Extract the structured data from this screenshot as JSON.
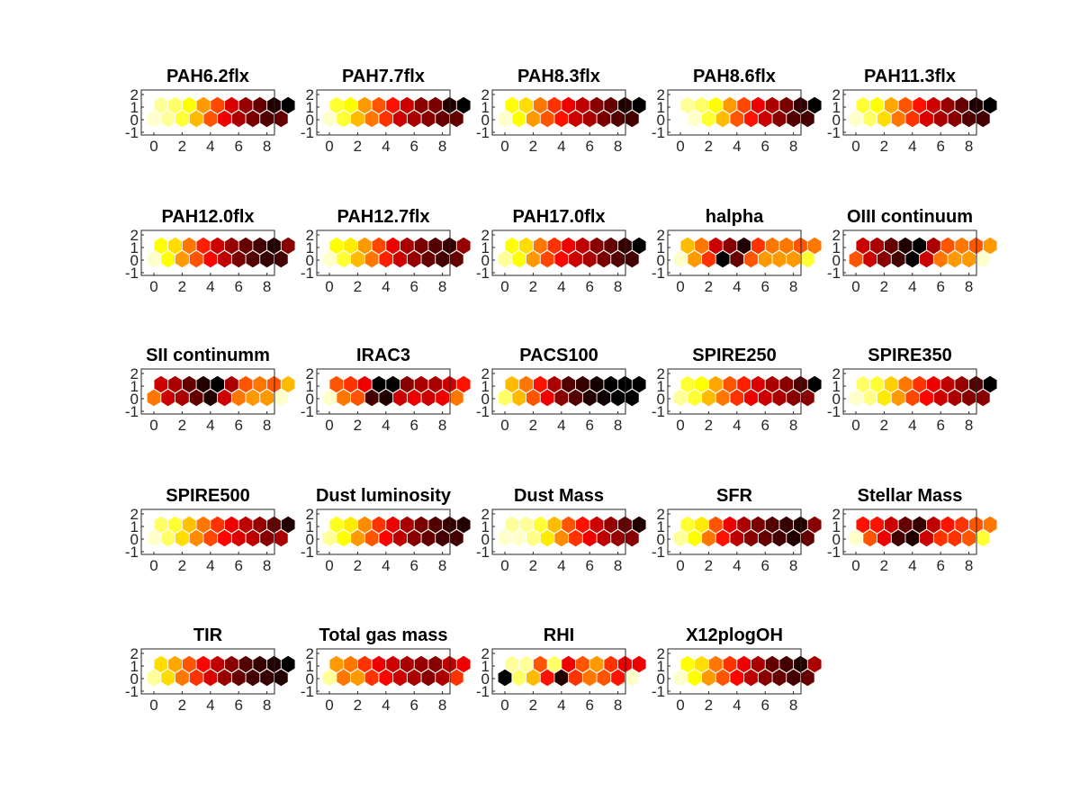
{
  "chart_data": {
    "type": "heatmap",
    "layout": "hexagonal SOM component planes, 10 x 2 grid",
    "colormap": "hot",
    "grid_lines": false,
    "x_ticks": [
      "0",
      "2",
      "4",
      "6",
      "8"
    ],
    "y_ticks": [
      "2",
      "1",
      "0",
      "-1"
    ],
    "xlim": [
      -0.5,
      9.5
    ],
    "ylim": [
      -1,
      2.5
    ],
    "panels": [
      {
        "title": "PAH6.2flx",
        "row0": [
          0.95,
          0.9,
          0.8,
          0.65,
          0.5,
          0.35,
          0.25,
          0.18,
          0.12,
          0.15
        ],
        "row1": [
          0.9,
          0.85,
          0.75,
          0.6,
          0.48,
          0.32,
          0.22,
          0.15,
          0.05,
          0.0
        ]
      },
      {
        "title": "PAH7.7flx",
        "row0": [
          0.95,
          0.8,
          0.65,
          0.55,
          0.45,
          0.3,
          0.25,
          0.2,
          0.15,
          0.15
        ],
        "row1": [
          0.8,
          0.75,
          0.6,
          0.5,
          0.4,
          0.3,
          0.2,
          0.18,
          0.05,
          0.0
        ]
      },
      {
        "title": "PAH8.3flx",
        "row0": [
          0.95,
          0.75,
          0.6,
          0.5,
          0.4,
          0.3,
          0.25,
          0.18,
          0.12,
          0.1
        ],
        "row1": [
          0.75,
          0.7,
          0.55,
          0.45,
          0.35,
          0.28,
          0.2,
          0.15,
          0.05,
          0.0
        ]
      },
      {
        "title": "PAH8.6flx",
        "row0": [
          1.0,
          0.95,
          0.8,
          0.65,
          0.5,
          0.4,
          0.3,
          0.2,
          0.12,
          0.1
        ],
        "row1": [
          0.9,
          0.85,
          0.75,
          0.6,
          0.48,
          0.35,
          0.25,
          0.18,
          0.08,
          0.0
        ]
      },
      {
        "title": "PAH11.3flx",
        "row0": [
          0.95,
          0.85,
          0.7,
          0.55,
          0.45,
          0.32,
          0.25,
          0.2,
          0.12,
          0.1
        ],
        "row1": [
          0.8,
          0.75,
          0.62,
          0.5,
          0.4,
          0.3,
          0.22,
          0.15,
          0.05,
          0.0
        ]
      },
      {
        "title": "PAH12.0flx",
        "row0": [
          0.95,
          0.75,
          0.6,
          0.5,
          0.38,
          0.28,
          0.18,
          0.12,
          0.08,
          0.1
        ],
        "row1": [
          0.75,
          0.7,
          0.55,
          0.42,
          0.3,
          0.22,
          0.15,
          0.1,
          0.05,
          0.2
        ]
      },
      {
        "title": "PAH12.7flx",
        "row0": [
          0.95,
          0.8,
          0.65,
          0.55,
          0.42,
          0.3,
          0.22,
          0.15,
          0.1,
          0.15
        ],
        "row1": [
          0.75,
          0.72,
          0.6,
          0.48,
          0.35,
          0.25,
          0.18,
          0.12,
          0.08,
          0.22
        ]
      },
      {
        "title": "PAH17.0flx",
        "row0": [
          0.9,
          0.75,
          0.6,
          0.48,
          0.38,
          0.3,
          0.25,
          0.18,
          0.12,
          0.1
        ],
        "row1": [
          0.75,
          0.7,
          0.55,
          0.45,
          0.35,
          0.28,
          0.2,
          0.15,
          0.08,
          0.0
        ]
      },
      {
        "title": "halpha",
        "row0": [
          0.95,
          0.6,
          0.45,
          0.0,
          0.15,
          0.5,
          0.6,
          0.6,
          0.6,
          0.8
        ],
        "row1": [
          0.65,
          0.55,
          0.3,
          0.2,
          0.05,
          0.45,
          0.55,
          0.55,
          0.5,
          0.55
        ]
      },
      {
        "title": "OIII continuum",
        "row0": [
          0.5,
          0.3,
          0.2,
          0.1,
          0.0,
          0.3,
          0.55,
          0.6,
          0.6,
          0.95
        ],
        "row1": [
          0.3,
          0.25,
          0.15,
          0.05,
          0.0,
          0.25,
          0.5,
          0.55,
          0.5,
          0.6
        ]
      },
      {
        "title": "SII continumm",
        "row0": [
          0.55,
          0.3,
          0.25,
          0.15,
          0.05,
          0.3,
          0.55,
          0.6,
          0.6,
          0.95
        ],
        "row1": [
          0.3,
          0.25,
          0.15,
          0.05,
          0.0,
          0.25,
          0.5,
          0.55,
          0.5,
          0.65
        ]
      },
      {
        "title": "IRAC3",
        "row0": [
          0.95,
          0.55,
          0.5,
          0.1,
          0.05,
          0.3,
          0.35,
          0.3,
          0.35,
          0.55
        ],
        "row1": [
          0.5,
          0.45,
          0.35,
          0.0,
          0.0,
          0.2,
          0.25,
          0.25,
          0.3,
          0.4
        ]
      },
      {
        "title": "PACS100",
        "row0": [
          0.85,
          0.65,
          0.5,
          0.35,
          0.2,
          0.12,
          0.05,
          0.02,
          0.0,
          0.0
        ],
        "row1": [
          0.65,
          0.55,
          0.4,
          0.25,
          0.12,
          0.08,
          0.03,
          0.0,
          0.0,
          0.0
        ]
      },
      {
        "title": "SPIRE250",
        "row0": [
          0.9,
          0.8,
          0.65,
          0.55,
          0.45,
          0.35,
          0.3,
          0.25,
          0.2,
          0.2
        ],
        "row1": [
          0.8,
          0.75,
          0.62,
          0.5,
          0.42,
          0.32,
          0.25,
          0.2,
          0.12,
          0.0
        ]
      },
      {
        "title": "SPIRE350",
        "row0": [
          0.95,
          0.88,
          0.72,
          0.6,
          0.48,
          0.38,
          0.3,
          0.25,
          0.2,
          0.2
        ],
        "row1": [
          0.85,
          0.8,
          0.68,
          0.55,
          0.45,
          0.35,
          0.28,
          0.22,
          0.12,
          0.0
        ]
      },
      {
        "title": "SPIRE500",
        "row0": [
          0.95,
          0.85,
          0.7,
          0.58,
          0.48,
          0.38,
          0.32,
          0.28,
          0.2,
          0.25
        ],
        "row1": [
          0.85,
          0.8,
          0.66,
          0.55,
          0.45,
          0.35,
          0.28,
          0.22,
          0.15,
          0.05
        ]
      },
      {
        "title": "Dust luminosity",
        "row0": [
          0.9,
          0.75,
          0.6,
          0.5,
          0.38,
          0.28,
          0.2,
          0.15,
          0.1,
          0.1
        ],
        "row1": [
          0.78,
          0.72,
          0.58,
          0.45,
          0.35,
          0.25,
          0.18,
          0.12,
          0.08,
          0.05
        ]
      },
      {
        "title": "Dust Mass",
        "row0": [
          0.95,
          0.95,
          0.88,
          0.72,
          0.58,
          0.45,
          0.35,
          0.28,
          0.22,
          0.2
        ],
        "row1": [
          0.9,
          0.9,
          0.8,
          0.65,
          0.5,
          0.4,
          0.3,
          0.22,
          0.15,
          0.05
        ]
      },
      {
        "title": "SFR",
        "row0": [
          0.9,
          0.75,
          0.55,
          0.4,
          0.28,
          0.2,
          0.15,
          0.1,
          0.05,
          0.15
        ],
        "row1": [
          0.8,
          0.72,
          0.5,
          0.35,
          0.25,
          0.18,
          0.12,
          0.08,
          0.05,
          0.2
        ]
      },
      {
        "title": "Stellar Mass",
        "row0": [
          0.95,
          0.5,
          0.35,
          0.1,
          0.05,
          0.3,
          0.45,
          0.45,
          0.5,
          0.8
        ],
        "row1": [
          0.4,
          0.4,
          0.3,
          0.15,
          0.08,
          0.28,
          0.4,
          0.45,
          0.5,
          0.55
        ]
      },
      {
        "title": "TIR",
        "row0": [
          0.9,
          0.7,
          0.55,
          0.45,
          0.32,
          0.22,
          0.15,
          0.1,
          0.08,
          0.05
        ],
        "row1": [
          0.7,
          0.62,
          0.5,
          0.38,
          0.28,
          0.2,
          0.12,
          0.08,
          0.05,
          0.0
        ]
      },
      {
        "title": "Total gas mass",
        "row0": [
          0.9,
          0.55,
          0.6,
          0.45,
          0.38,
          0.3,
          0.25,
          0.2,
          0.25,
          0.45
        ],
        "row1": [
          0.6,
          0.55,
          0.45,
          0.35,
          0.3,
          0.25,
          0.22,
          0.2,
          0.28,
          0.35
        ]
      },
      {
        "title": "RHI",
        "row0": [
          0.0,
          0.85,
          0.65,
          0.4,
          0.05,
          0.45,
          0.55,
          0.5,
          0.4,
          0.95
        ],
        "row1": [
          0.9,
          0.9,
          0.5,
          0.85,
          0.35,
          0.5,
          0.6,
          0.45,
          0.35,
          0.35
        ]
      },
      {
        "title": "X12plogOH",
        "row0": [
          0.95,
          0.75,
          0.6,
          0.5,
          0.38,
          0.28,
          0.2,
          0.15,
          0.1,
          0.15
        ],
        "row1": [
          0.75,
          0.7,
          0.55,
          0.45,
          0.35,
          0.25,
          0.15,
          0.1,
          0.05,
          0.25
        ]
      }
    ]
  }
}
